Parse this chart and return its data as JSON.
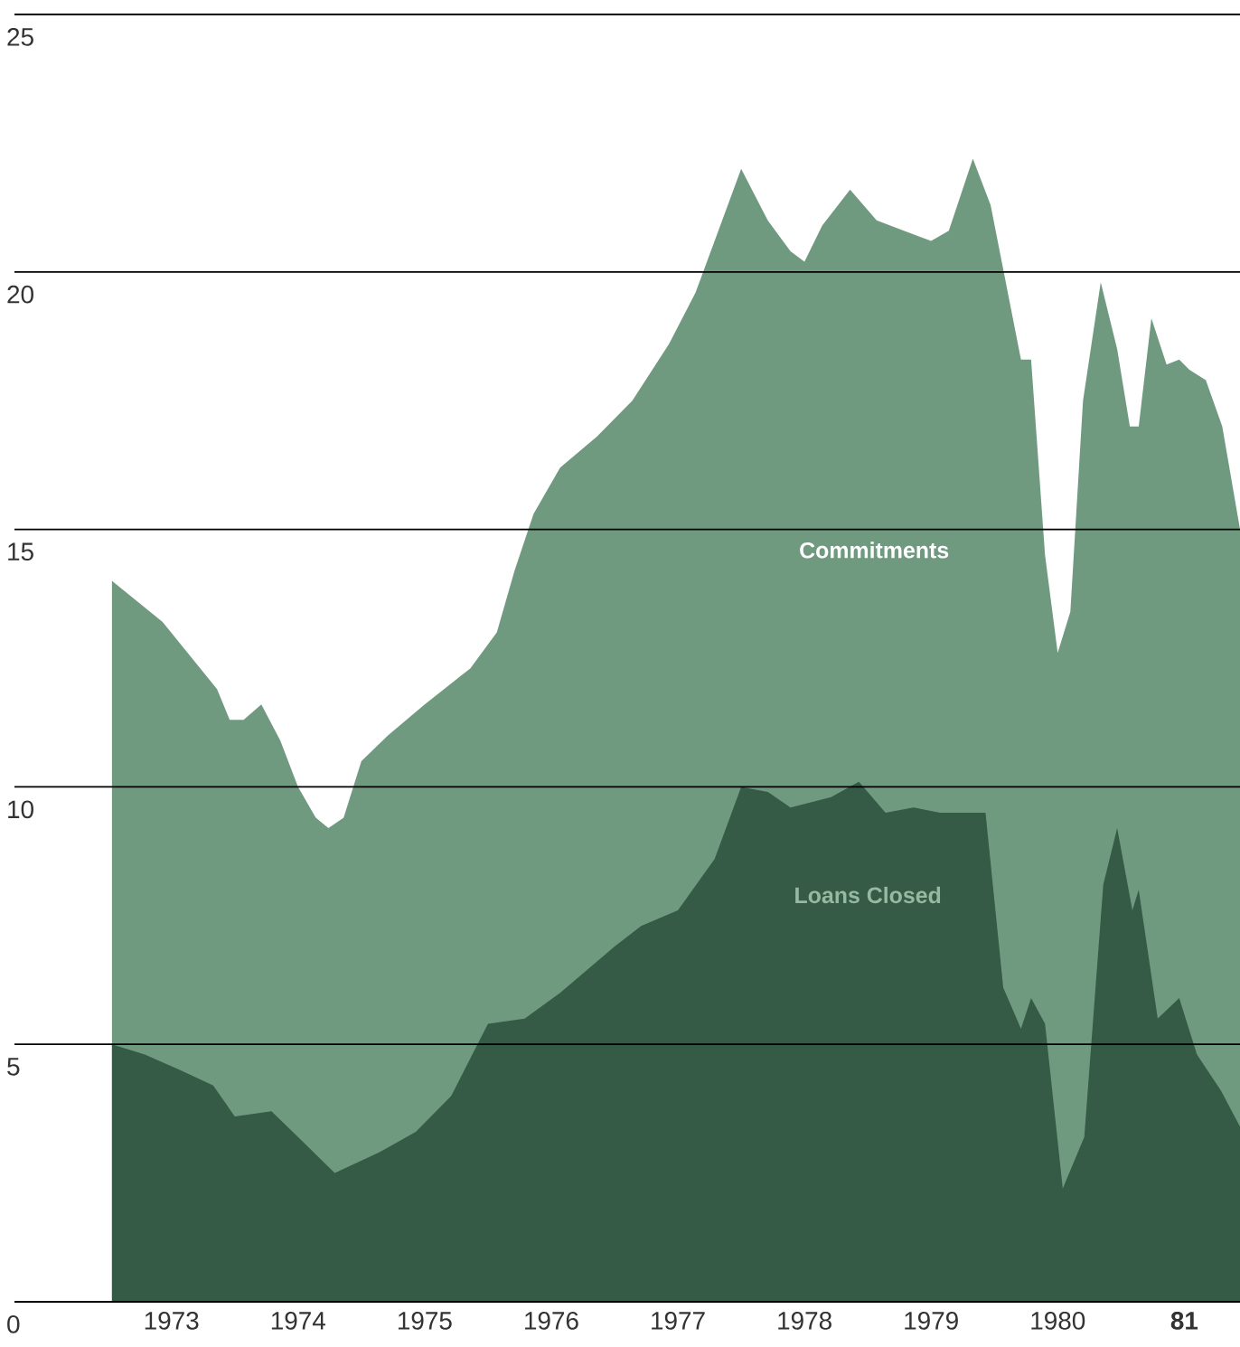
{
  "chart_data": {
    "type": "area",
    "x": [
      1972.53,
      1972.93,
      1973.36,
      1973.46,
      1973.57,
      1973.71,
      1973.86,
      1974.0,
      1974.14,
      1974.24,
      1974.36,
      1974.5,
      1974.71,
      1975.0,
      1975.36,
      1975.57,
      1975.71,
      1975.86,
      1976.07,
      1976.36,
      1976.64,
      1976.93,
      1977.14,
      1977.5,
      1977.71,
      1977.89,
      1978.0,
      1978.14,
      1978.36,
      1978.57,
      1979.0,
      1979.14,
      1979.33,
      1979.47,
      1979.71,
      1979.79,
      1979.9,
      1980.0,
      1980.1,
      1980.2,
      1980.34,
      1980.47,
      1980.57,
      1980.64,
      1980.74,
      1980.86,
      1980.96,
      1981.04,
      1981.17,
      1981.3,
      1981.44
    ],
    "series": [
      {
        "name": "Commitments",
        "color": "#6f9a80",
        "values": [
          14.0,
          13.2,
          11.9,
          11.3,
          11.3,
          11.6,
          10.9,
          10.0,
          9.4,
          9.2,
          9.4,
          10.5,
          11.0,
          11.6,
          12.3,
          13.0,
          14.2,
          15.3,
          16.2,
          16.8,
          17.5,
          18.6,
          19.6,
          22.0,
          21.0,
          20.4,
          20.2,
          20.9,
          21.6,
          21.0,
          20.6,
          20.8,
          22.2,
          21.3,
          18.3,
          18.3,
          14.5,
          12.6,
          13.4,
          17.5,
          19.8,
          18.5,
          17.0,
          17.0,
          19.1,
          18.2,
          18.3,
          18.1,
          17.9,
          17.0,
          15.0
        ]
      },
      {
        "name": "Loans Closed",
        "color": "#355a45",
        "x": [
          1972.53,
          1972.79,
          1973.07,
          1973.33,
          1973.5,
          1973.79,
          1974.0,
          1974.29,
          1974.64,
          1974.93,
          1975.21,
          1975.5,
          1975.79,
          1976.07,
          1976.5,
          1976.71,
          1977.0,
          1977.29,
          1977.5,
          1977.71,
          1977.89,
          1978.21,
          1978.43,
          1978.64,
          1978.86,
          1979.07,
          1979.29,
          1979.43,
          1979.57,
          1979.71,
          1979.79,
          1979.9,
          1980.04,
          1980.21,
          1980.36,
          1980.47,
          1980.59,
          1980.64,
          1980.79,
          1980.96,
          1981.1,
          1981.29,
          1981.44
        ],
        "values": [
          5.0,
          4.8,
          4.5,
          4.2,
          3.6,
          3.7,
          3.2,
          2.5,
          2.9,
          3.3,
          4.0,
          5.4,
          5.5,
          6.0,
          6.9,
          7.3,
          7.6,
          8.6,
          10.0,
          9.9,
          9.6,
          9.8,
          10.1,
          9.5,
          9.6,
          9.5,
          9.5,
          9.5,
          6.1,
          5.3,
          5.9,
          5.4,
          2.2,
          3.2,
          8.1,
          9.2,
          7.6,
          8.0,
          5.5,
          5.9,
          4.8,
          4.1,
          3.4
        ]
      }
    ],
    "xlim": [
      1971.76,
      1981.44
    ],
    "xticks": [
      1973,
      1974,
      1975,
      1976,
      1977,
      1978,
      1979,
      1980,
      {
        "value": 1981,
        "label": "81"
      }
    ],
    "ylim": [
      0,
      25
    ],
    "yticks": [
      0,
      5,
      10,
      15,
      20,
      25
    ],
    "grid": "y",
    "legend": false
  }
}
